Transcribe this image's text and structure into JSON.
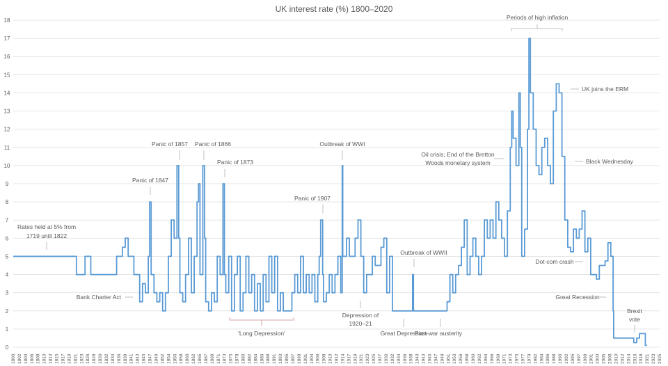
{
  "chart_data": {
    "type": "line",
    "title": "UK interest rate (%) 1800–2020",
    "xlabel": "",
    "ylabel": "",
    "xlim": [
      1800,
      2025
    ],
    "ylim": [
      0,
      18
    ],
    "yticks": [
      0,
      1,
      2,
      3,
      4,
      5,
      6,
      7,
      8,
      9,
      10,
      11,
      12,
      13,
      14,
      15,
      16,
      17,
      18
    ],
    "grid": "horizontal",
    "line_color": "#5b9bd5",
    "step": true,
    "xtick_labels": [
      "1800",
      "1802",
      "1804",
      "1806",
      "1808",
      "1810",
      "1813",
      "1815",
      "1817",
      "1819",
      "1821",
      "1823",
      "1826",
      "1828",
      "1830",
      "1832",
      "1834",
      "1836",
      "1839",
      "1841",
      "1843",
      "1845",
      "1847",
      "1849",
      "1852",
      "1854",
      "1856",
      "1858",
      "1860",
      "1862",
      "1865",
      "1867",
      "1869",
      "1871",
      "1873",
      "1875",
      "1878",
      "1880",
      "1882",
      "1884",
      "1886",
      "1888",
      "1891",
      "1893",
      "1895",
      "1897",
      "1899",
      "1901",
      "1904",
      "1906",
      "1908",
      "1910",
      "1912",
      "1914",
      "1917",
      "1919",
      "1921",
      "1923",
      "1925",
      "1927",
      "1930",
      "1932",
      "1934",
      "1936",
      "1938",
      "1940",
      "1943",
      "1945",
      "1947",
      "1949",
      "1951",
      "1953",
      "1956",
      "1958",
      "1960",
      "1962",
      "1964",
      "1966",
      "1969",
      "1971",
      "1973",
      "1975",
      "1977",
      "1979",
      "1982",
      "1984",
      "1986",
      "1988",
      "1990",
      "1992",
      "1995",
      "1997",
      "1999",
      "2001",
      "2003",
      "2005",
      "2008",
      "2010",
      "2012",
      "2014",
      "2016",
      "2018",
      "2021",
      "2023",
      "2025"
    ],
    "points": [
      [
        1800,
        5
      ],
      [
        1822,
        4
      ],
      [
        1825,
        5
      ],
      [
        1827,
        4
      ],
      [
        1836,
        5
      ],
      [
        1838,
        5.5
      ],
      [
        1839,
        6
      ],
      [
        1840,
        5
      ],
      [
        1842,
        4
      ],
      [
        1844,
        2.5
      ],
      [
        1845,
        3.5
      ],
      [
        1846,
        3
      ],
      [
        1847,
        5
      ],
      [
        1847.5,
        8
      ],
      [
        1848,
        4
      ],
      [
        1849,
        3
      ],
      [
        1850,
        2.5
      ],
      [
        1851,
        3
      ],
      [
        1852,
        2
      ],
      [
        1853,
        3
      ],
      [
        1854,
        5
      ],
      [
        1855,
        7
      ],
      [
        1856,
        6
      ],
      [
        1857,
        10
      ],
      [
        1857.6,
        6
      ],
      [
        1858,
        3
      ],
      [
        1859,
        2.5
      ],
      [
        1860,
        4
      ],
      [
        1861,
        6
      ],
      [
        1862,
        3
      ],
      [
        1863,
        5
      ],
      [
        1864,
        8
      ],
      [
        1864.5,
        9
      ],
      [
        1865,
        4
      ],
      [
        1866,
        10
      ],
      [
        1866.6,
        6
      ],
      [
        1867,
        2.5
      ],
      [
        1868,
        2
      ],
      [
        1869,
        3
      ],
      [
        1870,
        2.5
      ],
      [
        1871,
        5
      ],
      [
        1872,
        4
      ],
      [
        1873,
        9
      ],
      [
        1873.5,
        4
      ],
      [
        1874,
        3
      ],
      [
        1875,
        5
      ],
      [
        1876,
        2
      ],
      [
        1877,
        4
      ],
      [
        1878,
        5
      ],
      [
        1879,
        2
      ],
      [
        1880,
        3
      ],
      [
        1881,
        5
      ],
      [
        1882,
        3
      ],
      [
        1883,
        4
      ],
      [
        1884,
        2
      ],
      [
        1885,
        3.5
      ],
      [
        1886,
        2
      ],
      [
        1887,
        4
      ],
      [
        1888,
        2.5
      ],
      [
        1889,
        5
      ],
      [
        1890,
        3
      ],
      [
        1891,
        5
      ],
      [
        1892,
        2
      ],
      [
        1893,
        3
      ],
      [
        1894,
        2
      ],
      [
        1897,
        3
      ],
      [
        1898,
        4
      ],
      [
        1899,
        3
      ],
      [
        1900,
        5
      ],
      [
        1901,
        3
      ],
      [
        1902,
        4
      ],
      [
        1903,
        3
      ],
      [
        1904,
        4
      ],
      [
        1905,
        2.5
      ],
      [
        1906,
        4
      ],
      [
        1906.5,
        5
      ],
      [
        1907,
        7
      ],
      [
        1907.7,
        4
      ],
      [
        1908,
        2.5
      ],
      [
        1909,
        3
      ],
      [
        1910,
        4
      ],
      [
        1911,
        3
      ],
      [
        1912,
        4
      ],
      [
        1913,
        5
      ],
      [
        1914,
        3
      ],
      [
        1914.5,
        10
      ],
      [
        1914.7,
        5
      ],
      [
        1916,
        6
      ],
      [
        1917,
        5
      ],
      [
        1919,
        6
      ],
      [
        1920,
        7
      ],
      [
        1921,
        5
      ],
      [
        1922,
        3
      ],
      [
        1923,
        4
      ],
      [
        1925,
        5
      ],
      [
        1926,
        4.5
      ],
      [
        1928,
        5.5
      ],
      [
        1929,
        6
      ],
      [
        1930,
        3
      ],
      [
        1931,
        5
      ],
      [
        1932,
        2
      ],
      [
        1939,
        4
      ],
      [
        1939.3,
        2
      ],
      [
        1951,
        2.5
      ],
      [
        1952,
        4
      ],
      [
        1953,
        3
      ],
      [
        1954,
        4
      ],
      [
        1955,
        4.5
      ],
      [
        1956,
        5.5
      ],
      [
        1957,
        7
      ],
      [
        1958,
        4
      ],
      [
        1959,
        5
      ],
      [
        1960,
        6
      ],
      [
        1961,
        5
      ],
      [
        1962,
        4
      ],
      [
        1963,
        5
      ],
      [
        1964,
        7
      ],
      [
        1965,
        6
      ],
      [
        1966,
        7
      ],
      [
        1967,
        6
      ],
      [
        1968,
        8
      ],
      [
        1969,
        7
      ],
      [
        1970,
        6
      ],
      [
        1971,
        5
      ],
      [
        1972,
        7.5
      ],
      [
        1973,
        11
      ],
      [
        1973.5,
        13
      ],
      [
        1974,
        11.5
      ],
      [
        1975,
        10
      ],
      [
        1976,
        14
      ],
      [
        1976.5,
        11
      ],
      [
        1977,
        5
      ],
      [
        1978,
        6.5
      ],
      [
        1979,
        12
      ],
      [
        1979.5,
        17
      ],
      [
        1980,
        14
      ],
      [
        1981,
        12
      ],
      [
        1982,
        10
      ],
      [
        1983,
        9.5
      ],
      [
        1984,
        11
      ],
      [
        1985,
        11.5
      ],
      [
        1986,
        10
      ],
      [
        1987,
        9
      ],
      [
        1988,
        13
      ],
      [
        1989,
        14.5
      ],
      [
        1990,
        14
      ],
      [
        1991,
        10.5
      ],
      [
        1992,
        7
      ],
      [
        1993,
        5.5
      ],
      [
        1994,
        5.25
      ],
      [
        1995,
        6.5
      ],
      [
        1996,
        6
      ],
      [
        1997,
        6.5
      ],
      [
        1998,
        7.5
      ],
      [
        1999,
        5.25
      ],
      [
        2000,
        6
      ],
      [
        2001,
        4
      ],
      [
        2003,
        3.75
      ],
      [
        2004,
        4.5
      ],
      [
        2006,
        4.75
      ],
      [
        2007,
        5.75
      ],
      [
        2008,
        5
      ],
      [
        2008.8,
        2
      ],
      [
        2009,
        0.5
      ],
      [
        2016,
        0.25
      ],
      [
        2017,
        0.5
      ],
      [
        2018,
        0.75
      ],
      [
        2020,
        0.1
      ]
    ],
    "annotations": {
      "rates_held_1": "Rates held at 5% from",
      "rates_held_2": "1719 until 1822",
      "bank_charter": "Bank Charter Act",
      "panic_1847": "Panic of 1847",
      "panic_1857": "Panic of 1857",
      "panic_1866": "Panic of 1866",
      "panic_1873": "Panic of 1873",
      "long_depression": "'Long Depression'",
      "panic_1907": "Panic of 1907",
      "wwi": "Outbreak of WWI",
      "depression_1920_1": "Depression of",
      "depression_1920_2": "1920–21",
      "great_depression": "Great Depression",
      "wwii": "Outbreak of WWII",
      "post_war": "Post-war austerity",
      "oil_crisis_1": "Oil crisis; End of the Bretton",
      "oil_crisis_2": "Woods monetary system",
      "high_inflation": "Periods of high inflation",
      "erm": "UK joins the ERM",
      "black_wednesday": "Black Wednesday",
      "dotcom": "Dot-com crash",
      "great_recession": "Great Recession",
      "brexit_1": "Brexit",
      "brexit_2": "vote"
    }
  }
}
